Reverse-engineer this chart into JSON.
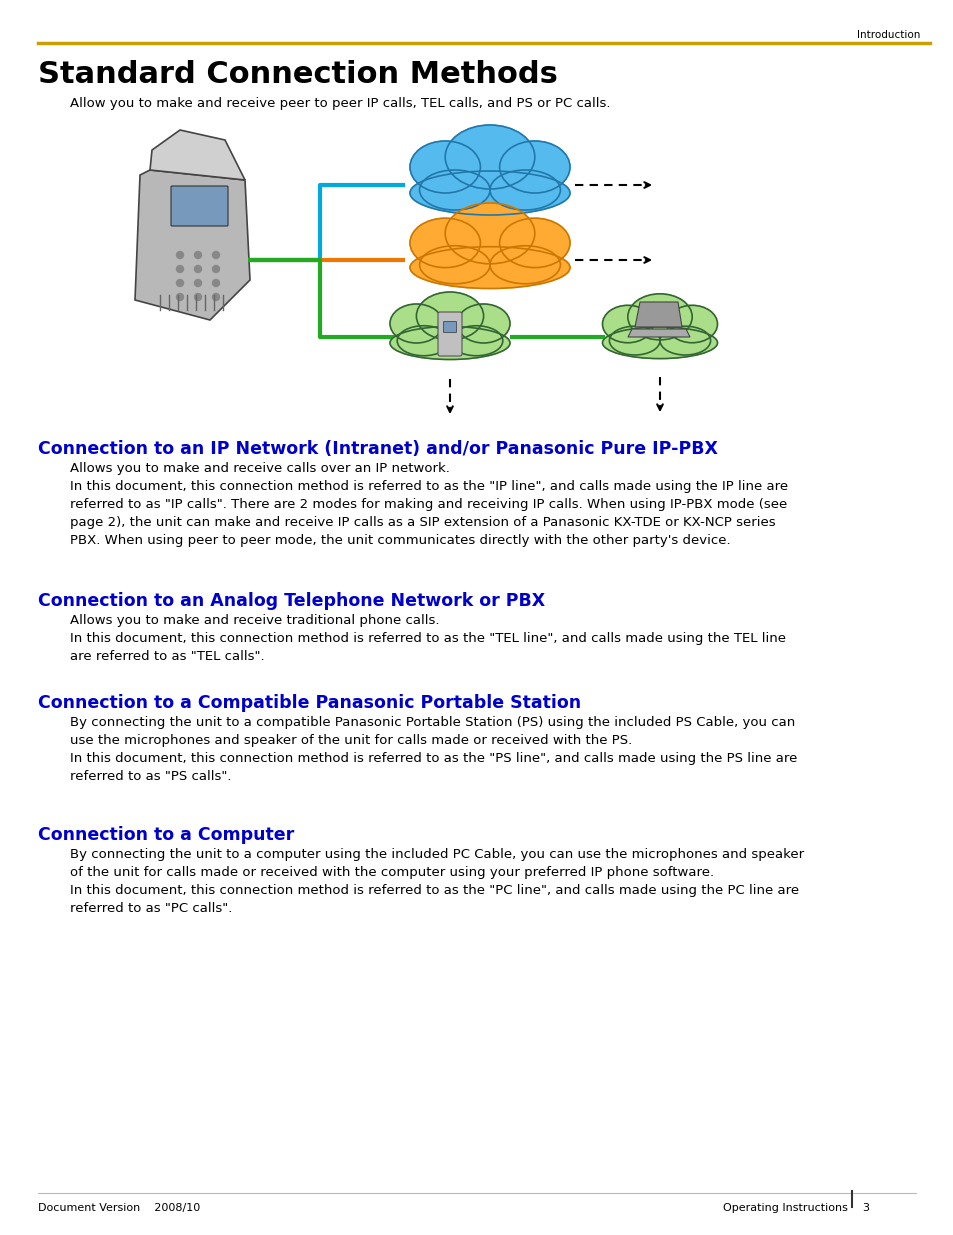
{
  "bg_color": "#ffffff",
  "header_line_color": "#C8A000",
  "header_text": "Introduction",
  "title": "Standard Connection Methods",
  "subtitle": "Allow you to make and receive peer to peer IP calls, TEL calls, and PS or PC calls.",
  "section_color": "#0000CC",
  "sections": [
    {
      "heading": "Connection to an IP Network (Intranet) and/or Panasonic Pure IP-PBX",
      "body": "Allows you to make and receive calls over an IP network.\nIn this document, this connection method is referred to as the \"IP line\", and calls made using the IP line are\nreferred to as \"IP calls\". There are 2 modes for making and receiving IP calls. When using IP-PBX mode (see\npage 2), the unit can make and receive IP calls as a SIP extension of a Panasonic KX-TDE or KX-NCP series\nPBX. When using peer to peer mode, the unit communicates directly with the other party's device."
    },
    {
      "heading": "Connection to an Analog Telephone Network or PBX",
      "body": "Allows you to make and receive traditional phone calls.\nIn this document, this connection method is referred to as the \"TEL line\", and calls made using the TEL line\nare referred to as \"TEL calls\"."
    },
    {
      "heading": "Connection to a Compatible Panasonic Portable Station",
      "body": "By connecting the unit to a compatible Panasonic Portable Station (PS) using the included PS Cable, you can\nuse the microphones and speaker of the unit for calls made or received with the PS.\nIn this document, this connection method is referred to as the \"PS line\", and calls made using the PS line are\nreferred to as \"PS calls\"."
    },
    {
      "heading": "Connection to a Computer",
      "body": "By connecting the unit to a computer using the included PC Cable, you can use the microphones and speaker\nof the unit for calls made or received with the computer using your preferred IP phone software.\nIn this document, this connection method is referred to as the \"PC line\", and calls made using the PC line are\nreferred to as \"PC calls\"."
    }
  ],
  "footer_left": "Document Version    2008/10",
  "footer_right": "Operating Instructions",
  "footer_page": "3"
}
